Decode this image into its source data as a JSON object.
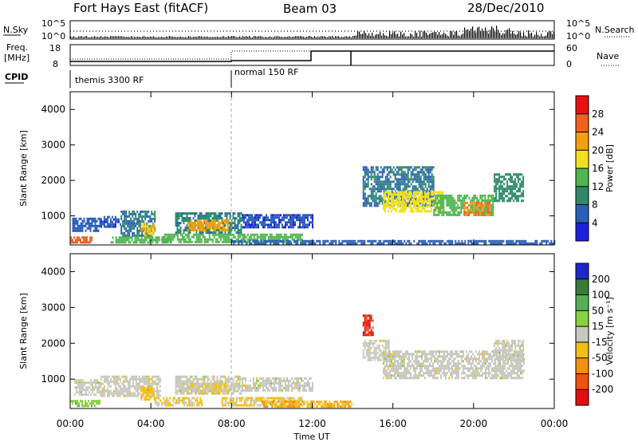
{
  "header": {
    "station": "Fort Hays East (fitACF)",
    "beam": "Beam 03",
    "date": "28/Dec/2010"
  },
  "noise_panel": {
    "left_label": "N.Sky",
    "left_top_tick": "10^5",
    "left_bottom_tick": "10^0",
    "right_top_tick": "10^5",
    "right_bottom_tick": "10^0",
    "right_label": "N.Search"
  },
  "freq_panel": {
    "left_label_line1": "Freq.",
    "left_label_line2": "[MHz]",
    "left_top_tick": "18",
    "left_bottom_tick": "8",
    "right_top_tick": "60",
    "right_bottom_tick": "0",
    "right_label": "Nave"
  },
  "cpid_panel": {
    "label": "CPID",
    "segments": [
      {
        "text": "themis 3300 RF",
        "start_hour": 0
      },
      {
        "text": "normal 150 RF",
        "start_hour": 8
      }
    ]
  },
  "axes": {
    "x_ticks": [
      "00:00",
      "04:00",
      "08:00",
      "12:00",
      "16:00",
      "20:00",
      "00:00"
    ],
    "xlabel": "Time UT"
  },
  "colorbars": {
    "power": {
      "label": "Power [dB]",
      "ticks": [
        "4",
        "8",
        "12",
        "16",
        "20",
        "24",
        "28"
      ],
      "colors": [
        "#1f1fe0",
        "#2a5fb8",
        "#2f8a6a",
        "#50b550",
        "#f2e020",
        "#f2a010",
        "#f06020",
        "#e81010"
      ]
    },
    "velocity": {
      "label": "Velocity [m s⁻¹]",
      "ticks": [
        "200",
        "100",
        "50",
        "15",
        "-15",
        "-50",
        "-100",
        "-200"
      ],
      "colors": [
        "#1c28c8",
        "#3a7a3a",
        "#55b055",
        "#8ad040",
        "#c8c8c0",
        "#f0c010",
        "#f59010",
        "#f05010",
        "#e01010"
      ]
    }
  },
  "chart_data": [
    {
      "type": "heatmap",
      "title": "",
      "xlabel": "Time UT",
      "ylabel": "Slant Range [km]",
      "xlim": [
        0,
        24
      ],
      "ylim": [
        180,
        4500
      ],
      "y_ticks": [
        1000,
        2000,
        3000,
        4000
      ],
      "colorbar_label": "Power [dB]",
      "colorbar_ticks": [
        4,
        8,
        12,
        16,
        20,
        24,
        28
      ],
      "colorbar_range": [
        0,
        32
      ],
      "regions": [
        {
          "t0": 0.0,
          "t1": 1.1,
          "r0": 250,
          "r1": 420,
          "value": 26
        },
        {
          "t0": 0.1,
          "t1": 1.5,
          "r0": 550,
          "r1": 950,
          "value": 6
        },
        {
          "t0": 1.5,
          "t1": 2.5,
          "r0": 700,
          "r1": 1000,
          "value": 5
        },
        {
          "t0": 2.5,
          "t1": 4.2,
          "r0": 450,
          "r1": 1150,
          "value": 8
        },
        {
          "t0": 3.5,
          "t1": 4.2,
          "r0": 400,
          "r1": 800,
          "value": 20
        },
        {
          "t0": 2.0,
          "t1": 5.0,
          "r0": 250,
          "r1": 420,
          "value": 14
        },
        {
          "t0": 5.2,
          "t1": 8.5,
          "r0": 550,
          "r1": 1100,
          "value": 9
        },
        {
          "t0": 5.8,
          "t1": 7.8,
          "r0": 580,
          "r1": 900,
          "value": 22
        },
        {
          "t0": 4.5,
          "t1": 11.5,
          "r0": 250,
          "r1": 500,
          "value": 14
        },
        {
          "t0": 8.5,
          "t1": 12.0,
          "r0": 650,
          "r1": 1050,
          "value": 5
        },
        {
          "t0": 8.0,
          "t1": 24.0,
          "r0": 200,
          "r1": 320,
          "value": 6
        },
        {
          "t0": 14.5,
          "t1": 18.0,
          "r0": 1300,
          "r1": 2400,
          "value": 8
        },
        {
          "t0": 15.5,
          "t1": 18.5,
          "r0": 1100,
          "r1": 1700,
          "value": 18
        },
        {
          "t0": 18.0,
          "t1": 21.0,
          "r0": 1050,
          "r1": 1600,
          "value": 14
        },
        {
          "t0": 19.5,
          "t1": 20.8,
          "r0": 1050,
          "r1": 1400,
          "value": 24
        },
        {
          "t0": 21.0,
          "t1": 22.5,
          "r0": 1400,
          "r1": 2200,
          "value": 10
        }
      ]
    },
    {
      "type": "heatmap",
      "title": "",
      "xlabel": "Time UT",
      "ylabel": "Slant Range [km]",
      "xlim": [
        0,
        24
      ],
      "ylim": [
        180,
        4500
      ],
      "y_ticks": [
        1000,
        2000,
        3000,
        4000
      ],
      "colorbar_label": "Velocity [m s⁻¹]",
      "colorbar_ticks": [
        200,
        100,
        50,
        15,
        -15,
        -50,
        -100,
        -200
      ],
      "colorbar_range": [
        -250,
        250
      ],
      "regions": [
        {
          "t0": 0.0,
          "t1": 1.5,
          "r0": 250,
          "r1": 420,
          "value": 60
        },
        {
          "t0": 0.2,
          "t1": 1.5,
          "r0": 550,
          "r1": 1000,
          "value": 0
        },
        {
          "t0": 1.5,
          "t1": 4.5,
          "r0": 550,
          "r1": 1100,
          "value": -5
        },
        {
          "t0": 3.5,
          "t1": 4.2,
          "r0": 450,
          "r1": 800,
          "value": -60
        },
        {
          "t0": 4.2,
          "t1": 6.5,
          "r0": 250,
          "r1": 500,
          "value": -40
        },
        {
          "t0": 5.2,
          "t1": 8.5,
          "r0": 600,
          "r1": 1100,
          "value": 0
        },
        {
          "t0": 5.8,
          "t1": 7.8,
          "r0": 600,
          "r1": 900,
          "value": -30
        },
        {
          "t0": 7.5,
          "t1": 11.5,
          "r0": 250,
          "r1": 500,
          "value": -40
        },
        {
          "t0": 8.5,
          "t1": 12.0,
          "r0": 650,
          "r1": 1050,
          "value": 0
        },
        {
          "t0": 9.5,
          "t1": 14.0,
          "r0": 200,
          "r1": 400,
          "value": -80
        },
        {
          "t0": 14.5,
          "t1": 15.0,
          "r0": 2200,
          "r1": 2800,
          "value": -200
        },
        {
          "t0": 14.5,
          "t1": 15.8,
          "r0": 1500,
          "r1": 2100,
          "value": 0
        },
        {
          "t0": 15.5,
          "t1": 22.5,
          "r0": 1000,
          "r1": 1800,
          "value": 0
        },
        {
          "t0": 21.0,
          "t1": 22.5,
          "r0": 1500,
          "r1": 2100,
          "value": 0
        }
      ]
    }
  ]
}
